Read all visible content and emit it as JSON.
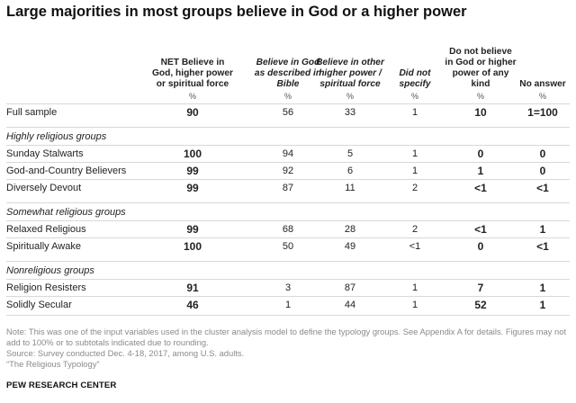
{
  "title": "Large majorities in most groups believe in God or a higher power",
  "chart_data": {
    "type": "table",
    "columns": [
      {
        "label": "NET Believe in God, higher power or spiritual force",
        "unit": "%"
      },
      {
        "label": "Believe in God as described in Bible",
        "unit": "%"
      },
      {
        "label": "Believe in other higher power / spiritual force",
        "unit": "%"
      },
      {
        "label": "Did not specify",
        "unit": "%"
      },
      {
        "label": "Do not believe in God or higher power of any kind",
        "unit": "%"
      },
      {
        "label": "No answer",
        "unit": "%"
      }
    ],
    "rows": [
      {
        "label": "Full sample",
        "values": [
          "90",
          "56",
          "33",
          "1",
          "10",
          "1=100"
        ]
      },
      {
        "group": "Highly religious groups"
      },
      {
        "label": "Sunday Stalwarts",
        "values": [
          "100",
          "94",
          "5",
          "1",
          "0",
          "0"
        ]
      },
      {
        "label": "God-and-Country Believers",
        "values": [
          "99",
          "92",
          "6",
          "1",
          "1",
          "0"
        ]
      },
      {
        "label": "Diversely Devout",
        "values": [
          "99",
          "87",
          "11",
          "2",
          "<1",
          "<1"
        ]
      },
      {
        "group": "Somewhat religious groups"
      },
      {
        "label": "Relaxed Religious",
        "values": [
          "99",
          "68",
          "28",
          "2",
          "<1",
          "1"
        ]
      },
      {
        "label": "Spiritually Awake",
        "values": [
          "100",
          "50",
          "49",
          "<1",
          "0",
          "<1"
        ]
      },
      {
        "group": "Nonreligious groups"
      },
      {
        "label": "Religion Resisters",
        "values": [
          "91",
          "3",
          "87",
          "1",
          "7",
          "1"
        ]
      },
      {
        "label": "Solidly Secular",
        "values": [
          "46",
          "1",
          "44",
          "1",
          "52",
          "1"
        ]
      }
    ]
  },
  "notes": [
    "Note: This was one of the input variables used in the cluster analysis model to define the typology groups. See Appendix A for details. Figures may not add to 100% or to subtotals indicated due to rounding.",
    "Source: Survey conducted Dec. 4-18, 2017, among U.S. adults.",
    "“The Religious Typology”"
  ],
  "footer": "PEW RESEARCH CENTER"
}
